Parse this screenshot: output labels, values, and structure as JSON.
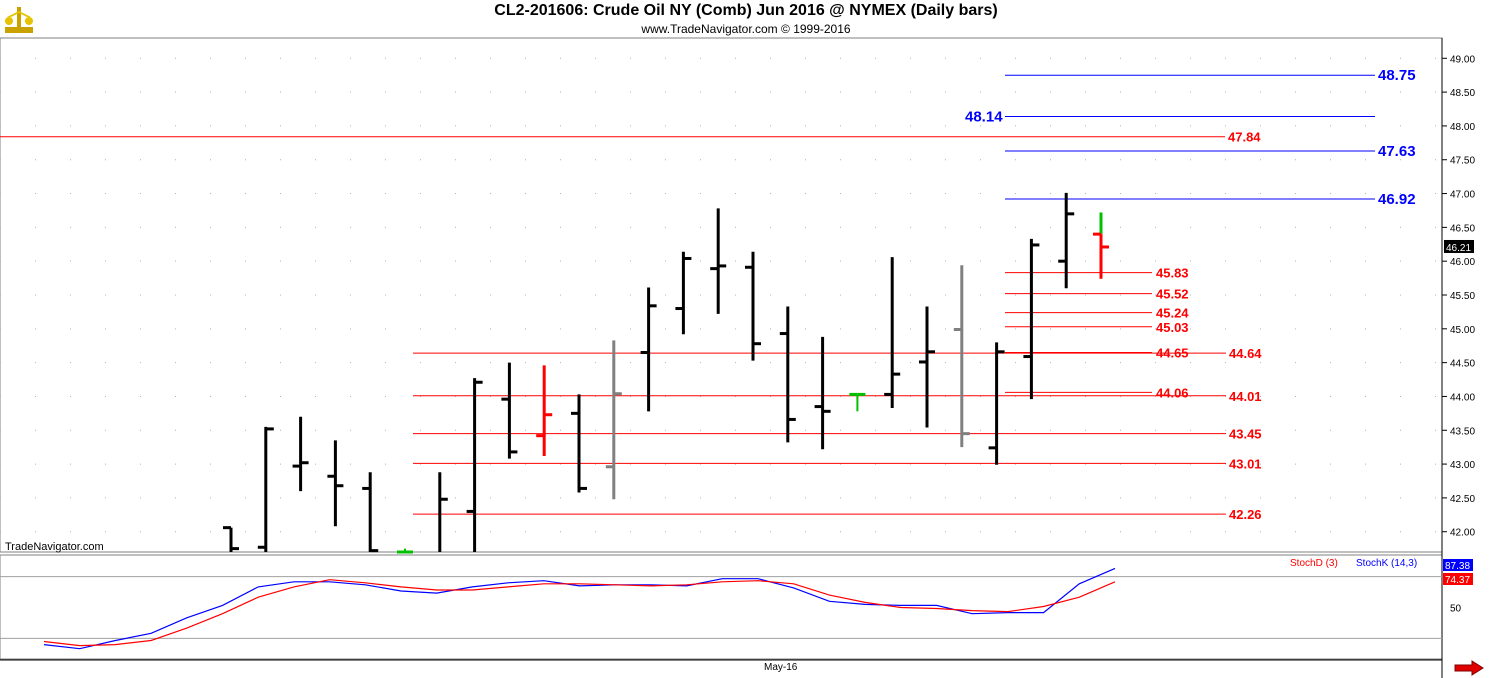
{
  "header": {
    "title": "CL2-201606:  Crude Oil NY (Comb) Jun 2016 @ NYMEX  (Daily bars)",
    "subtitle": "www.TradeNavigator.com © 1999-2016"
  },
  "watermark": "TradeNavigator.com",
  "x_axis_label": "May-16",
  "colors": {
    "up": "#000000",
    "down": "#000000",
    "gray": "#808080",
    "green": "#00c000",
    "red": "#ff0000",
    "blue": "#0000ff",
    "grid": "#b0b0b0"
  },
  "chart_data": [
    {
      "type": "ohlc",
      "name": "price",
      "ylim": [
        41.7,
        49.3
      ],
      "yticks": [
        "42.00",
        "42.50",
        "43.00",
        "43.50",
        "44.00",
        "44.50",
        "45.00",
        "45.50",
        "46.00",
        "46.50",
        "47.00",
        "47.50",
        "48.00",
        "48.50",
        "49.00"
      ],
      "last_price": "46.21",
      "bars": [
        {
          "i": 0,
          "o": 42.06,
          "h": 42.06,
          "l": 41.6,
          "c": 41.75,
          "color": "black"
        },
        {
          "i": 1,
          "o": 41.77,
          "h": 43.55,
          "l": 41.6,
          "c": 43.52,
          "color": "black"
        },
        {
          "i": 2,
          "o": 42.97,
          "h": 43.7,
          "l": 42.6,
          "c": 43.02,
          "color": "black"
        },
        {
          "i": 3,
          "o": 42.82,
          "h": 43.35,
          "l": 42.08,
          "c": 42.68,
          "color": "black"
        },
        {
          "i": 4,
          "o": 42.64,
          "h": 42.88,
          "l": 41.6,
          "c": 41.72,
          "color": "black"
        },
        {
          "i": 5,
          "o": 41.7,
          "h": 41.75,
          "l": 41.6,
          "c": 41.7,
          "color": "green"
        },
        {
          "i": 6,
          "o": 41.6,
          "h": 42.88,
          "l": 41.6,
          "c": 42.48,
          "color": "black"
        },
        {
          "i": 7,
          "o": 42.3,
          "h": 44.27,
          "l": 41.6,
          "c": 44.21,
          "color": "black"
        },
        {
          "i": 8,
          "o": 43.96,
          "h": 44.5,
          "l": 43.08,
          "c": 43.18,
          "color": "black"
        },
        {
          "i": 9,
          "o": 43.42,
          "h": 44.46,
          "l": 43.12,
          "c": 43.73,
          "color": "red"
        },
        {
          "i": 10,
          "o": 43.75,
          "h": 44.03,
          "l": 42.58,
          "c": 42.64,
          "color": "black"
        },
        {
          "i": 11,
          "o": 42.96,
          "h": 44.83,
          "l": 42.48,
          "c": 44.04,
          "color": "gray"
        },
        {
          "i": 12,
          "o": 44.65,
          "h": 45.61,
          "l": 43.78,
          "c": 45.34,
          "color": "black"
        },
        {
          "i": 13,
          "o": 45.3,
          "h": 46.14,
          "l": 44.92,
          "c": 46.04,
          "color": "black"
        },
        {
          "i": 14,
          "o": 45.89,
          "h": 46.78,
          "l": 45.22,
          "c": 45.93,
          "color": "black"
        },
        {
          "i": 15,
          "o": 45.91,
          "h": 46.14,
          "l": 44.53,
          "c": 44.78,
          "color": "black"
        },
        {
          "i": 16,
          "o": 44.93,
          "h": 45.33,
          "l": 43.32,
          "c": 43.66,
          "color": "black"
        },
        {
          "i": 17,
          "o": 43.85,
          "h": 44.88,
          "l": 43.22,
          "c": 43.78,
          "color": "black"
        },
        {
          "i": 18,
          "o": 44.03,
          "h": 44.02,
          "l": 43.78,
          "c": 44.03,
          "color": "green"
        },
        {
          "i": 19,
          "o": 44.03,
          "h": 46.06,
          "l": 43.83,
          "c": 44.33,
          "color": "black"
        },
        {
          "i": 20,
          "o": 44.51,
          "h": 45.33,
          "l": 43.54,
          "c": 44.66,
          "color": "black"
        },
        {
          "i": 21,
          "o": 44.99,
          "h": 45.94,
          "l": 43.25,
          "c": 43.45,
          "color": "gray"
        },
        {
          "i": 22,
          "o": 43.24,
          "h": 44.8,
          "l": 42.99,
          "c": 44.66,
          "color": "black"
        },
        {
          "i": 23,
          "o": 44.59,
          "h": 46.33,
          "l": 43.96,
          "c": 46.24,
          "color": "black"
        },
        {
          "i": 24,
          "o": 46.0,
          "h": 47.01,
          "l": 45.6,
          "c": 46.7,
          "color": "black"
        },
        {
          "i": 25,
          "o": 46.4,
          "h": 46.72,
          "l": 45.74,
          "c": 46.21,
          "color": "red",
          "hi_color": "green"
        }
      ],
      "levels": [
        {
          "value": 48.75,
          "label": "48.75",
          "color": "blue"
        },
        {
          "value": 48.14,
          "label": "48.14",
          "color": "blue"
        },
        {
          "value": 47.84,
          "label": "47.84",
          "color": "red"
        },
        {
          "value": 47.63,
          "label": "47.63",
          "color": "blue"
        },
        {
          "value": 46.92,
          "label": "46.92",
          "color": "blue"
        },
        {
          "value": 45.83,
          "label": "45.83",
          "color": "red"
        },
        {
          "value": 45.52,
          "label": "45.52",
          "color": "red"
        },
        {
          "value": 45.24,
          "label": "45.24",
          "color": "red"
        },
        {
          "value": 45.03,
          "label": "45.03",
          "color": "red"
        },
        {
          "value": 44.65,
          "label": "44.65",
          "color": "red"
        },
        {
          "value": 44.64,
          "label": "44.64",
          "color": "red"
        },
        {
          "value": 44.06,
          "label": "44.06",
          "color": "red"
        },
        {
          "value": 44.01,
          "label": "44.01",
          "color": "red"
        },
        {
          "value": 43.45,
          "label": "43.45",
          "color": "red"
        },
        {
          "value": 43.01,
          "label": "43.01",
          "color": "red"
        },
        {
          "value": 42.26,
          "label": "42.26",
          "color": "red"
        }
      ]
    },
    {
      "type": "line",
      "name": "stochastic",
      "ylim": [
        0,
        100
      ],
      "yticks": [
        "50"
      ],
      "legend": [
        "StochD (3)",
        "StochK (14,3)"
      ],
      "last_values": {
        "k": "87.38",
        "d": "74.37"
      },
      "series": [
        {
          "name": "StochK (14,3)",
          "color": "blue",
          "values": [
            14,
            10,
            18,
            25,
            40,
            52,
            70,
            75,
            75,
            72,
            66,
            64,
            70,
            74,
            76,
            71,
            72,
            72,
            71,
            78,
            78,
            69,
            56,
            53,
            52,
            52,
            44,
            45,
            45,
            73,
            88
          ]
        },
        {
          "name": "StochD (3)",
          "color": "red",
          "values": [
            17,
            13,
            14,
            18,
            30,
            44,
            60,
            70,
            77,
            74,
            70,
            67,
            67,
            70,
            73,
            73,
            72,
            71,
            72,
            75,
            76,
            73,
            62,
            55,
            50,
            49,
            47,
            46,
            51,
            60,
            75
          ]
        }
      ]
    }
  ]
}
